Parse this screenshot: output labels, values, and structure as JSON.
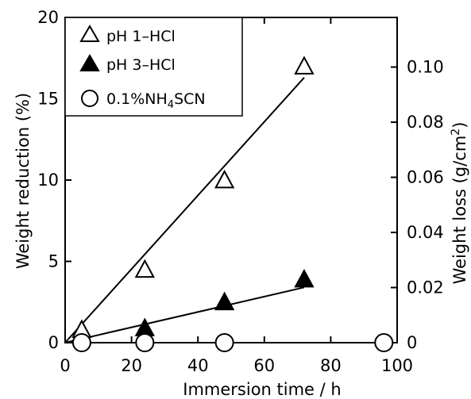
{
  "chart_data": {
    "type": "scatter",
    "xlabel": "Immersion time / h",
    "ylabel": "Weight reduction (%)",
    "y2label_text": "Weight loss (g/cm",
    "y2label_sup": "2",
    "y2label_close": ")",
    "xlim": [
      0,
      100
    ],
    "ylim": [
      0,
      20
    ],
    "y2lim": [
      0,
      0.118
    ],
    "x_ticks": [
      0,
      20,
      40,
      60,
      80,
      100
    ],
    "x_tick_labels": [
      "0",
      "20",
      "40",
      "60",
      "80",
      "100"
    ],
    "y_ticks": [
      0,
      5,
      10,
      15,
      20
    ],
    "y_tick_labels": [
      "0",
      "5",
      "10",
      "15",
      "20"
    ],
    "y2_ticks": [
      0,
      0.02,
      0.04,
      0.06,
      0.08,
      0.1
    ],
    "y2_tick_labels": [
      "0",
      "0.02",
      "0.04",
      "0.06",
      "0.08",
      "0.10"
    ],
    "grid": false,
    "legend_position": "top-left",
    "series": [
      {
        "name": "pH 1–HCl",
        "marker": "triangle-open",
        "x": [
          5,
          24,
          48,
          72
        ],
        "y": [
          0.8,
          4.5,
          10.0,
          17.0
        ],
        "fit": {
          "x": [
            0,
            72
          ],
          "y": [
            0,
            16.3
          ]
        }
      },
      {
        "name": "pH 3–HCl",
        "marker": "triangle-filled",
        "x": [
          24,
          48,
          72
        ],
        "y": [
          0.9,
          2.5,
          3.9
        ],
        "fit": {
          "x": [
            0,
            72
          ],
          "y": [
            0,
            3.4
          ]
        }
      },
      {
        "name_parts": [
          "0.1%NH",
          "4",
          "SCN"
        ],
        "marker": "circle-open",
        "x": [
          5,
          24,
          48,
          96
        ],
        "y": [
          0,
          0,
          0,
          0
        ]
      }
    ]
  }
}
